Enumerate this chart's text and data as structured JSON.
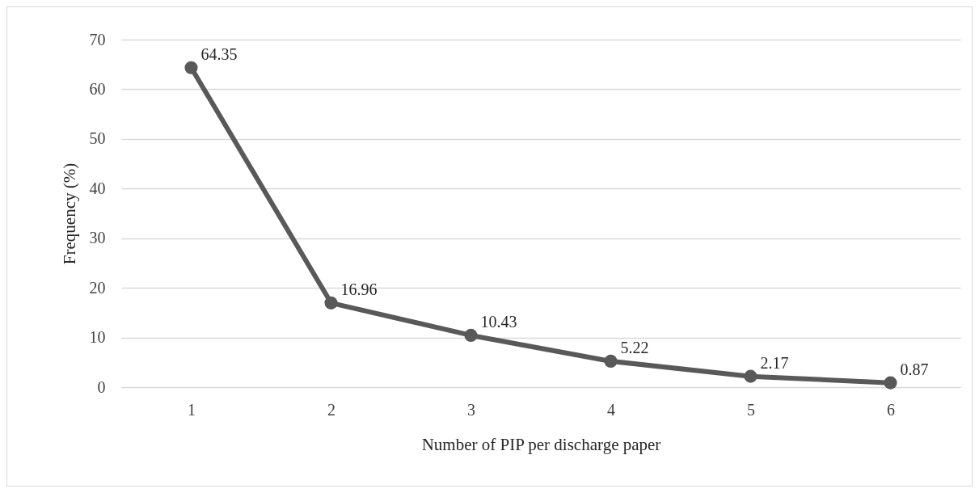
{
  "chart_data": {
    "type": "line",
    "xlabel": "Number of PIP per discharge paper",
    "ylabel": "Frequency (%)",
    "categories": [
      "1",
      "2",
      "3",
      "4",
      "5",
      "6"
    ],
    "series": [
      {
        "color": "#595959",
        "values": [
          64.35,
          16.96,
          10.43,
          5.22,
          2.17,
          0.87
        ]
      }
    ],
    "ylim": [
      0,
      70
    ],
    "yticks": [
      0,
      10,
      20,
      30,
      40,
      50,
      60,
      70
    ],
    "grid": "y",
    "marker": "circle",
    "data_labels": true
  }
}
